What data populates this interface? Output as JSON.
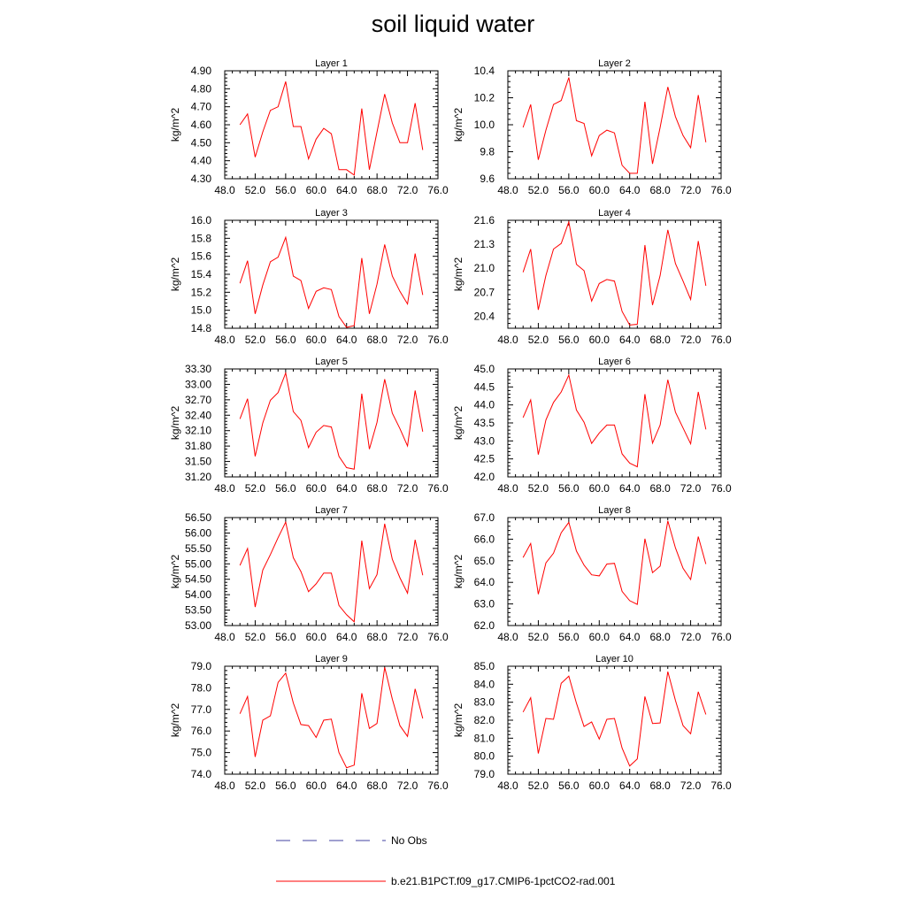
{
  "title": "soil liquid water",
  "legend": [
    {
      "label": "No Obs",
      "color": "#4040a0",
      "dash": "dashed"
    },
    {
      "label": "b.e21.B1PCT.f09_g17.CMIP6-1pctCO2-rad.001",
      "color": "#ff0000",
      "dash": "solid"
    }
  ],
  "chart_data": [
    {
      "type": "line",
      "title": "Layer 1",
      "ylabel": "kg/m^2",
      "xlim": [
        48,
        76
      ],
      "xticks": [
        "48.0",
        "52.0",
        "56.0",
        "60.0",
        "64.0",
        "68.0",
        "72.0",
        "76.0"
      ],
      "ylim": [
        4.3,
        4.9
      ],
      "yticks": [
        "4.30",
        "4.40",
        "4.50",
        "4.60",
        "4.70",
        "4.80",
        "4.90"
      ],
      "series": [
        {
          "color": "#ff0000",
          "x": [
            50,
            51,
            52,
            53,
            54,
            55,
            56,
            57,
            58,
            59,
            60,
            61,
            62,
            63,
            64,
            65,
            66,
            67,
            68,
            69,
            70,
            71,
            72,
            73,
            74
          ],
          "y": [
            4.6,
            4.66,
            4.42,
            4.56,
            4.68,
            4.7,
            4.84,
            4.59,
            4.59,
            4.41,
            4.52,
            4.58,
            4.55,
            4.35,
            4.35,
            4.32,
            4.69,
            4.35,
            4.56,
            4.77,
            4.61,
            4.5,
            4.5,
            4.72,
            4.46
          ]
        }
      ]
    },
    {
      "type": "line",
      "title": "Layer 2",
      "ylabel": "kg/m^2",
      "xlim": [
        48,
        76
      ],
      "xticks": [
        "48.0",
        "52.0",
        "56.0",
        "60.0",
        "64.0",
        "68.0",
        "72.0",
        "76.0"
      ],
      "ylim": [
        9.6,
        10.4
      ],
      "yticks": [
        "9.6",
        "9.8",
        "10.0",
        "10.2",
        "10.4"
      ],
      "series": [
        {
          "color": "#ff0000",
          "x": [
            50,
            51,
            52,
            53,
            54,
            55,
            56,
            57,
            58,
            59,
            60,
            61,
            62,
            63,
            64,
            65,
            66,
            67,
            68,
            69,
            70,
            71,
            72,
            73,
            74
          ],
          "y": [
            9.98,
            10.15,
            9.74,
            9.96,
            10.15,
            10.18,
            10.35,
            10.03,
            10.01,
            9.77,
            9.92,
            9.96,
            9.94,
            9.7,
            9.64,
            9.64,
            10.17,
            9.71,
            9.98,
            10.28,
            10.06,
            9.92,
            9.83,
            10.22,
            9.87
          ]
        }
      ]
    },
    {
      "type": "line",
      "title": "Layer 3",
      "ylabel": "kg/m^2",
      "xlim": [
        48,
        76
      ],
      "xticks": [
        "48.0",
        "52.0",
        "56.0",
        "60.0",
        "64.0",
        "68.0",
        "72.0",
        "76.0"
      ],
      "ylim": [
        14.8,
        16.0
      ],
      "yticks": [
        "14.8",
        "15.0",
        "15.2",
        "15.4",
        "15.6",
        "15.8",
        "16.0"
      ],
      "series": [
        {
          "color": "#ff0000",
          "x": [
            50,
            51,
            52,
            53,
            54,
            55,
            56,
            57,
            58,
            59,
            60,
            61,
            62,
            63,
            64,
            65,
            66,
            67,
            68,
            69,
            70,
            71,
            72,
            73,
            74
          ],
          "y": [
            15.3,
            15.55,
            14.96,
            15.28,
            15.54,
            15.59,
            15.81,
            15.38,
            15.33,
            15.02,
            15.21,
            15.25,
            15.23,
            14.93,
            14.81,
            14.83,
            15.58,
            14.96,
            15.29,
            15.73,
            15.38,
            15.21,
            15.07,
            15.63,
            15.17
          ]
        }
      ]
    },
    {
      "type": "line",
      "title": "Layer 4",
      "ylabel": "kg/m^2",
      "xlim": [
        48,
        76
      ],
      "xticks": [
        "48.0",
        "52.0",
        "56.0",
        "60.0",
        "64.0",
        "68.0",
        "72.0",
        "76.0"
      ],
      "ylim": [
        20.25,
        21.6
      ],
      "yticks": [
        "20.4",
        "20.7",
        "21.0",
        "21.3",
        "21.6"
      ],
      "series": [
        {
          "color": "#ff0000",
          "x": [
            50,
            51,
            52,
            53,
            54,
            55,
            56,
            57,
            58,
            59,
            60,
            61,
            62,
            63,
            64,
            65,
            66,
            67,
            68,
            69,
            70,
            71,
            72,
            73,
            74
          ],
          "y": [
            20.95,
            21.24,
            20.48,
            20.91,
            21.24,
            21.31,
            21.58,
            21.05,
            20.97,
            20.59,
            20.81,
            20.86,
            20.84,
            20.46,
            20.29,
            20.3,
            21.29,
            20.54,
            20.91,
            21.48,
            21.06,
            20.84,
            20.61,
            21.34,
            20.78
          ]
        }
      ]
    },
    {
      "type": "line",
      "title": "Layer 5",
      "ylabel": "kg/m^2",
      "xlim": [
        48,
        76
      ],
      "xticks": [
        "48.0",
        "52.0",
        "56.0",
        "60.0",
        "64.0",
        "68.0",
        "72.0",
        "76.0"
      ],
      "ylim": [
        31.2,
        33.3
      ],
      "yticks": [
        "31.20",
        "31.50",
        "31.80",
        "32.10",
        "32.40",
        "32.70",
        "33.00",
        "33.30"
      ],
      "series": [
        {
          "color": "#ff0000",
          "x": [
            50,
            51,
            52,
            53,
            54,
            55,
            56,
            57,
            58,
            59,
            60,
            61,
            62,
            63,
            64,
            65,
            66,
            67,
            68,
            69,
            70,
            71,
            72,
            73,
            74
          ],
          "y": [
            32.33,
            32.72,
            31.6,
            32.25,
            32.69,
            32.84,
            33.22,
            32.47,
            32.3,
            31.77,
            32.07,
            32.2,
            32.17,
            31.6,
            31.38,
            31.35,
            32.82,
            31.74,
            32.26,
            33.1,
            32.44,
            32.14,
            31.8,
            32.88,
            32.08
          ]
        }
      ]
    },
    {
      "type": "line",
      "title": "Layer 6",
      "ylabel": "kg/m^2",
      "xlim": [
        48,
        76
      ],
      "xticks": [
        "48.0",
        "52.0",
        "56.0",
        "60.0",
        "64.0",
        "68.0",
        "72.0",
        "76.0"
      ],
      "ylim": [
        42.0,
        45.0
      ],
      "yticks": [
        "42.0",
        "42.5",
        "43.0",
        "43.5",
        "44.0",
        "44.5",
        "45.0"
      ],
      "series": [
        {
          "color": "#ff0000",
          "x": [
            50,
            51,
            52,
            53,
            54,
            55,
            56,
            57,
            58,
            59,
            60,
            61,
            62,
            63,
            64,
            65,
            66,
            67,
            68,
            69,
            70,
            71,
            72,
            73,
            74
          ],
          "y": [
            43.65,
            44.14,
            42.62,
            43.58,
            44.07,
            44.36,
            44.83,
            43.86,
            43.52,
            42.93,
            43.22,
            43.44,
            43.44,
            42.64,
            42.38,
            42.28,
            44.3,
            42.94,
            43.44,
            44.7,
            43.8,
            43.36,
            42.92,
            44.36,
            43.32
          ]
        }
      ]
    },
    {
      "type": "line",
      "title": "Layer 7",
      "ylabel": "kg/m^2",
      "xlim": [
        48,
        76
      ],
      "xticks": [
        "48.0",
        "52.0",
        "56.0",
        "60.0",
        "64.0",
        "68.0",
        "72.0",
        "76.0"
      ],
      "ylim": [
        53.0,
        56.5
      ],
      "yticks": [
        "53.00",
        "53.50",
        "54.00",
        "54.50",
        "55.00",
        "55.50",
        "56.00",
        "56.50"
      ],
      "series": [
        {
          "color": "#ff0000",
          "x": [
            50,
            51,
            52,
            53,
            54,
            55,
            56,
            57,
            58,
            59,
            60,
            61,
            62,
            63,
            64,
            65,
            66,
            67,
            68,
            69,
            70,
            71,
            72,
            73,
            74
          ],
          "y": [
            54.95,
            55.5,
            53.6,
            54.8,
            55.3,
            55.85,
            56.35,
            55.2,
            54.75,
            54.1,
            54.35,
            54.7,
            54.7,
            53.65,
            53.35,
            53.12,
            55.75,
            54.2,
            54.65,
            56.3,
            55.15,
            54.55,
            54.05,
            55.78,
            54.63
          ]
        }
      ]
    },
    {
      "type": "line",
      "title": "Layer 8",
      "ylabel": "kg/m^2",
      "xlim": [
        48,
        76
      ],
      "xticks": [
        "48.0",
        "52.0",
        "56.0",
        "60.0",
        "64.0",
        "68.0",
        "72.0",
        "76.0"
      ],
      "ylim": [
        62.0,
        67.0
      ],
      "yticks": [
        "62.0",
        "63.0",
        "64.0",
        "65.0",
        "66.0",
        "67.0"
      ],
      "series": [
        {
          "color": "#ff0000",
          "x": [
            50,
            51,
            52,
            53,
            54,
            55,
            56,
            57,
            58,
            59,
            60,
            61,
            62,
            63,
            64,
            65,
            66,
            67,
            68,
            69,
            70,
            71,
            72,
            73,
            74
          ],
          "y": [
            65.15,
            65.8,
            63.45,
            64.9,
            65.35,
            66.3,
            66.78,
            65.45,
            64.8,
            64.35,
            64.3,
            64.85,
            64.88,
            63.58,
            63.15,
            62.98,
            66.02,
            64.45,
            64.75,
            66.85,
            65.6,
            64.65,
            64.13,
            66.12,
            64.85
          ]
        }
      ]
    },
    {
      "type": "line",
      "title": "Layer 9",
      "ylabel": "kg/m^2",
      "xlim": [
        48,
        76
      ],
      "xticks": [
        "48.0",
        "52.0",
        "56.0",
        "60.0",
        "64.0",
        "68.0",
        "72.0",
        "76.0"
      ],
      "ylim": [
        74.0,
        79.0
      ],
      "yticks": [
        "74.0",
        "75.0",
        "76.0",
        "77.0",
        "78.0",
        "79.0"
      ],
      "series": [
        {
          "color": "#ff0000",
          "x": [
            50,
            51,
            52,
            53,
            54,
            55,
            56,
            57,
            58,
            59,
            60,
            61,
            62,
            63,
            64,
            65,
            66,
            67,
            68,
            69,
            70,
            71,
            72,
            73,
            74
          ],
          "y": [
            76.8,
            77.6,
            74.8,
            76.5,
            76.7,
            78.25,
            78.68,
            77.3,
            76.3,
            76.25,
            75.7,
            76.5,
            76.55,
            75.0,
            74.3,
            74.42,
            77.75,
            76.12,
            76.35,
            78.95,
            77.48,
            76.25,
            75.75,
            77.95,
            76.58
          ]
        }
      ]
    },
    {
      "type": "line",
      "title": "Layer 10",
      "ylabel": "kg/m^2",
      "xlim": [
        48,
        76
      ],
      "xticks": [
        "48.0",
        "52.0",
        "56.0",
        "60.0",
        "64.0",
        "68.0",
        "72.0",
        "76.0"
      ],
      "ylim": [
        79.0,
        85.0
      ],
      "yticks": [
        "79.0",
        "80.0",
        "81.0",
        "82.0",
        "83.0",
        "84.0",
        "85.0"
      ],
      "series": [
        {
          "color": "#ff0000",
          "x": [
            50,
            51,
            52,
            53,
            54,
            55,
            56,
            57,
            58,
            59,
            60,
            61,
            62,
            63,
            64,
            65,
            66,
            67,
            68,
            69,
            70,
            71,
            72,
            73,
            74
          ],
          "y": [
            82.45,
            83.25,
            80.15,
            82.1,
            82.05,
            84.05,
            84.45,
            82.95,
            81.65,
            81.9,
            80.95,
            82.05,
            82.1,
            80.45,
            79.45,
            79.85,
            83.32,
            81.82,
            81.85,
            84.7,
            83.1,
            81.7,
            81.25,
            83.58,
            82.32
          ]
        }
      ]
    }
  ]
}
